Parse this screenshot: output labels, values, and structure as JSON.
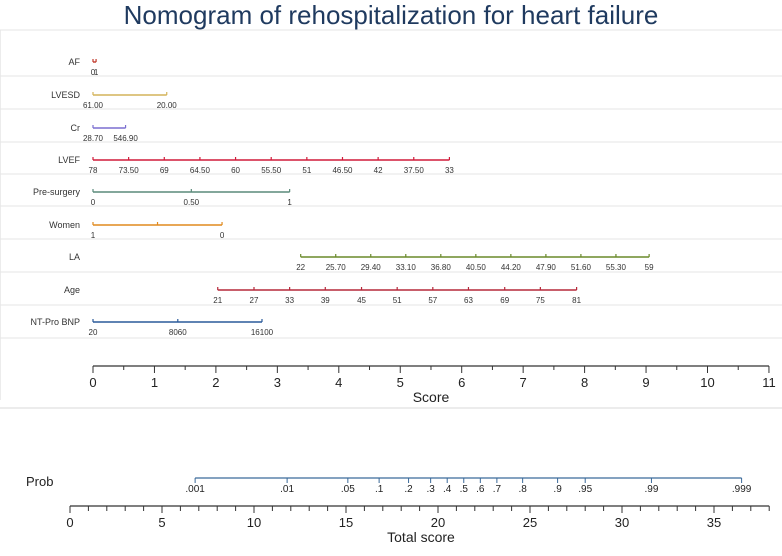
{
  "chart_data": {
    "type": "nomogram",
    "title": "Nomogram of rehospitalization for heart failure",
    "score_axis": {
      "label": "Score",
      "range": [
        0,
        11
      ],
      "ticks": [
        0,
        1,
        2,
        3,
        4,
        5,
        6,
        7,
        8,
        9,
        10,
        11
      ]
    },
    "variables": [
      {
        "name": "AF",
        "color": "#c0392b",
        "ticks": [
          {
            "label": "0",
            "score": 0.0
          },
          {
            "label": "1",
            "score": 0.05
          }
        ]
      },
      {
        "name": "LVESD",
        "color": "#d4b45a",
        "ticks": [
          {
            "label": "61.00",
            "score": 0.0
          },
          {
            "label": "20.00",
            "score": 1.2
          }
        ]
      },
      {
        "name": "Cr",
        "color": "#7b6fd0",
        "ticks": [
          {
            "label": "28.70",
            "score": 0.0
          },
          {
            "label": "546.90",
            "score": 0.53
          }
        ]
      },
      {
        "name": "LVEF",
        "color": "#d01c3a",
        "ticks": [
          {
            "label": "78",
            "score": 0.0
          },
          {
            "label": "73.50",
            "score": 0.58
          },
          {
            "label": "69",
            "score": 1.16
          },
          {
            "label": "64.50",
            "score": 1.74
          },
          {
            "label": "60",
            "score": 2.32
          },
          {
            "label": "55.50",
            "score": 2.9
          },
          {
            "label": "51",
            "score": 3.48
          },
          {
            "label": "46.50",
            "score": 4.06
          },
          {
            "label": "42",
            "score": 4.64
          },
          {
            "label": "37.50",
            "score": 5.22
          },
          {
            "label": "33",
            "score": 5.8
          }
        ]
      },
      {
        "name": "Pre-surgery",
        "color": "#5a8a7a",
        "ticks": [
          {
            "label": "0",
            "score": 0.0
          },
          {
            "label": "0.50",
            "score": 1.6
          },
          {
            "label": "1",
            "score": 3.2
          }
        ]
      },
      {
        "name": "Women",
        "color": "#e08a1e",
        "ticks": [
          {
            "label": "1",
            "score": 0.0
          },
          {
            "label": "",
            "score": 1.05
          },
          {
            "label": "0",
            "score": 2.1
          }
        ]
      },
      {
        "name": "LA",
        "color": "#6a8a2a",
        "ticks": [
          {
            "label": "22",
            "score": 3.38
          },
          {
            "label": "25.70",
            "score": 3.95
          },
          {
            "label": "29.40",
            "score": 4.52
          },
          {
            "label": "33.10",
            "score": 5.09
          },
          {
            "label": "36.80",
            "score": 5.66
          },
          {
            "label": "40.50",
            "score": 6.23
          },
          {
            "label": "44.20",
            "score": 6.8
          },
          {
            "label": "47.90",
            "score": 7.37
          },
          {
            "label": "51.60",
            "score": 7.94
          },
          {
            "label": "55.30",
            "score": 8.51
          },
          {
            "label": "59",
            "score": 9.05
          }
        ]
      },
      {
        "name": "Age",
        "color": "#b5283a",
        "ticks": [
          {
            "label": "21",
            "score": 2.03
          },
          {
            "label": "27",
            "score": 2.62
          },
          {
            "label": "33",
            "score": 3.2
          },
          {
            "label": "39",
            "score": 3.78
          },
          {
            "label": "45",
            "score": 4.37
          },
          {
            "label": "51",
            "score": 4.95
          },
          {
            "label": "57",
            "score": 5.53
          },
          {
            "label": "63",
            "score": 6.11
          },
          {
            "label": "69",
            "score": 6.7
          },
          {
            "label": "75",
            "score": 7.28
          },
          {
            "label": "81",
            "score": 7.87
          }
        ]
      },
      {
        "name": "NT-Pro BNP",
        "color": "#2a5a9a",
        "ticks": [
          {
            "label": "20",
            "score": 0.0
          },
          {
            "label": "8060",
            "score": 1.38
          },
          {
            "label": "16100",
            "score": 2.75
          }
        ]
      }
    ],
    "total_axis": {
      "label": "Total score",
      "range": [
        0,
        38
      ],
      "ticks": [
        0,
        5,
        10,
        15,
        20,
        25,
        30,
        35
      ]
    },
    "prob_axis": {
      "label": "Prob",
      "color": "#3a6a9a",
      "ticks": [
        {
          "label": ".001",
          "total": 6.8
        },
        {
          "label": ".01",
          "total": 11.8
        },
        {
          "label": ".05",
          "total": 15.1
        },
        {
          "label": ".1",
          "total": 16.8
        },
        {
          "label": ".2",
          "total": 18.4
        },
        {
          "label": ".3",
          "total": 19.6
        },
        {
          "label": ".4",
          "total": 20.5
        },
        {
          "label": ".5",
          "total": 21.4
        },
        {
          "label": ".6",
          "total": 22.3
        },
        {
          "label": ".7",
          "total": 23.2
        },
        {
          "label": ".8",
          "total": 24.6
        },
        {
          "label": ".9",
          "total": 26.5
        },
        {
          "label": ".95",
          "total": 28.0
        },
        {
          "label": ".99",
          "total": 31.6
        },
        {
          "label": ".999",
          "total": 36.5
        }
      ]
    }
  }
}
